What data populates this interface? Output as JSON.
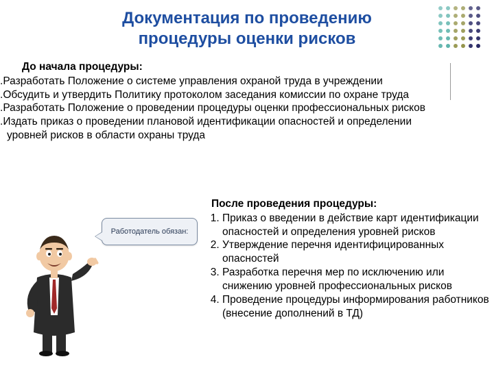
{
  "title_line1": "Документация по проведению",
  "title_line2": "процедуры оценки рисков",
  "title_color": "#1e4ea1",
  "dot_colors": {
    "teal": "#3aa39a",
    "olive": "#8a8a3a",
    "navy": "#2a2a66"
  },
  "section1": {
    "heading": "До начала процедуры:",
    "items": [
      "Разработать Положение о системе управления охраной труда в учреждении",
      "Обсудить и утвердить Политику протоколом заседания комиссии по охране труда",
      "Разработать Положение о проведении процедуры оценки профессиональных рисков",
      "Издать приказ о проведении плановой идентификации опасностей и определении уровней рисков в области охраны труда"
    ]
  },
  "section2": {
    "heading": "После проведения процедуры:",
    "items": [
      "Приказ о введении в действие карт идентификации опасностей и определения уровней рисков",
      "Утверждение перечня идентифицированных опасностей",
      "Разработка перечня мер по исключению или снижению уровней профессиональных рисков",
      "Проведение процедуры информирования работников (внесение дополнений в ТД)"
    ]
  },
  "speech_text": "Работодатель обязан:",
  "character": {
    "suit_color": "#2b2b2b",
    "skin_color": "#f1c9a3",
    "hair_color": "#3a2a1a",
    "tie_color": "#a02828",
    "shirt_color": "#ffffff"
  },
  "background_color": "#ffffff",
  "text_color": "#000000",
  "font_family": "Arial, sans-serif",
  "title_fontsize": 24,
  "body_fontsize": 15.5,
  "speech_fontsize": 11
}
